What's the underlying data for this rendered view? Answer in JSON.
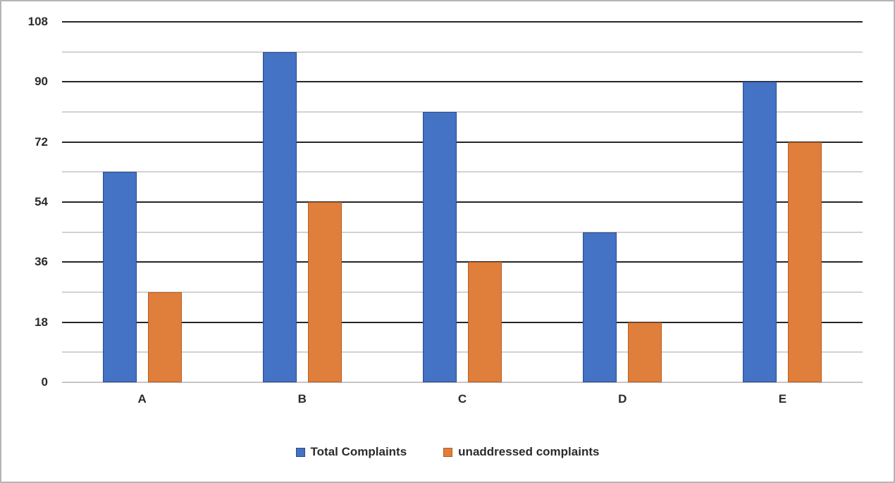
{
  "chart_data": {
    "type": "bar",
    "title": "",
    "xlabel": "",
    "ylabel": "",
    "categories": [
      "A",
      "B",
      "C",
      "D",
      "E"
    ],
    "series": [
      {
        "name": "Total Complaints",
        "color": "#4472c4",
        "border_color": "#2a4b8d",
        "values": [
          63,
          99,
          81,
          45,
          90
        ]
      },
      {
        "name": "unaddressed complaints",
        "color": "#e07e3b",
        "border_color": "#b55e20",
        "values": [
          27,
          54,
          36,
          18,
          72
        ]
      }
    ],
    "ylim": [
      0,
      108
    ],
    "y_major_step": 18,
    "y_minor_step": 9,
    "y_tick_labels": [
      "108",
      "90",
      "72",
      "54",
      "36",
      "18",
      "0"
    ],
    "grid": "horizontal major and minor gridlines on",
    "legend_position": "bottom"
  },
  "colors": {
    "major_gridline": "#262626",
    "minor_gridline": "#d2d2d2",
    "baseline": "#c6c6c6",
    "outer_border": "#b5b5b5",
    "text": "#2b2b2b",
    "background": "#ffffff"
  }
}
